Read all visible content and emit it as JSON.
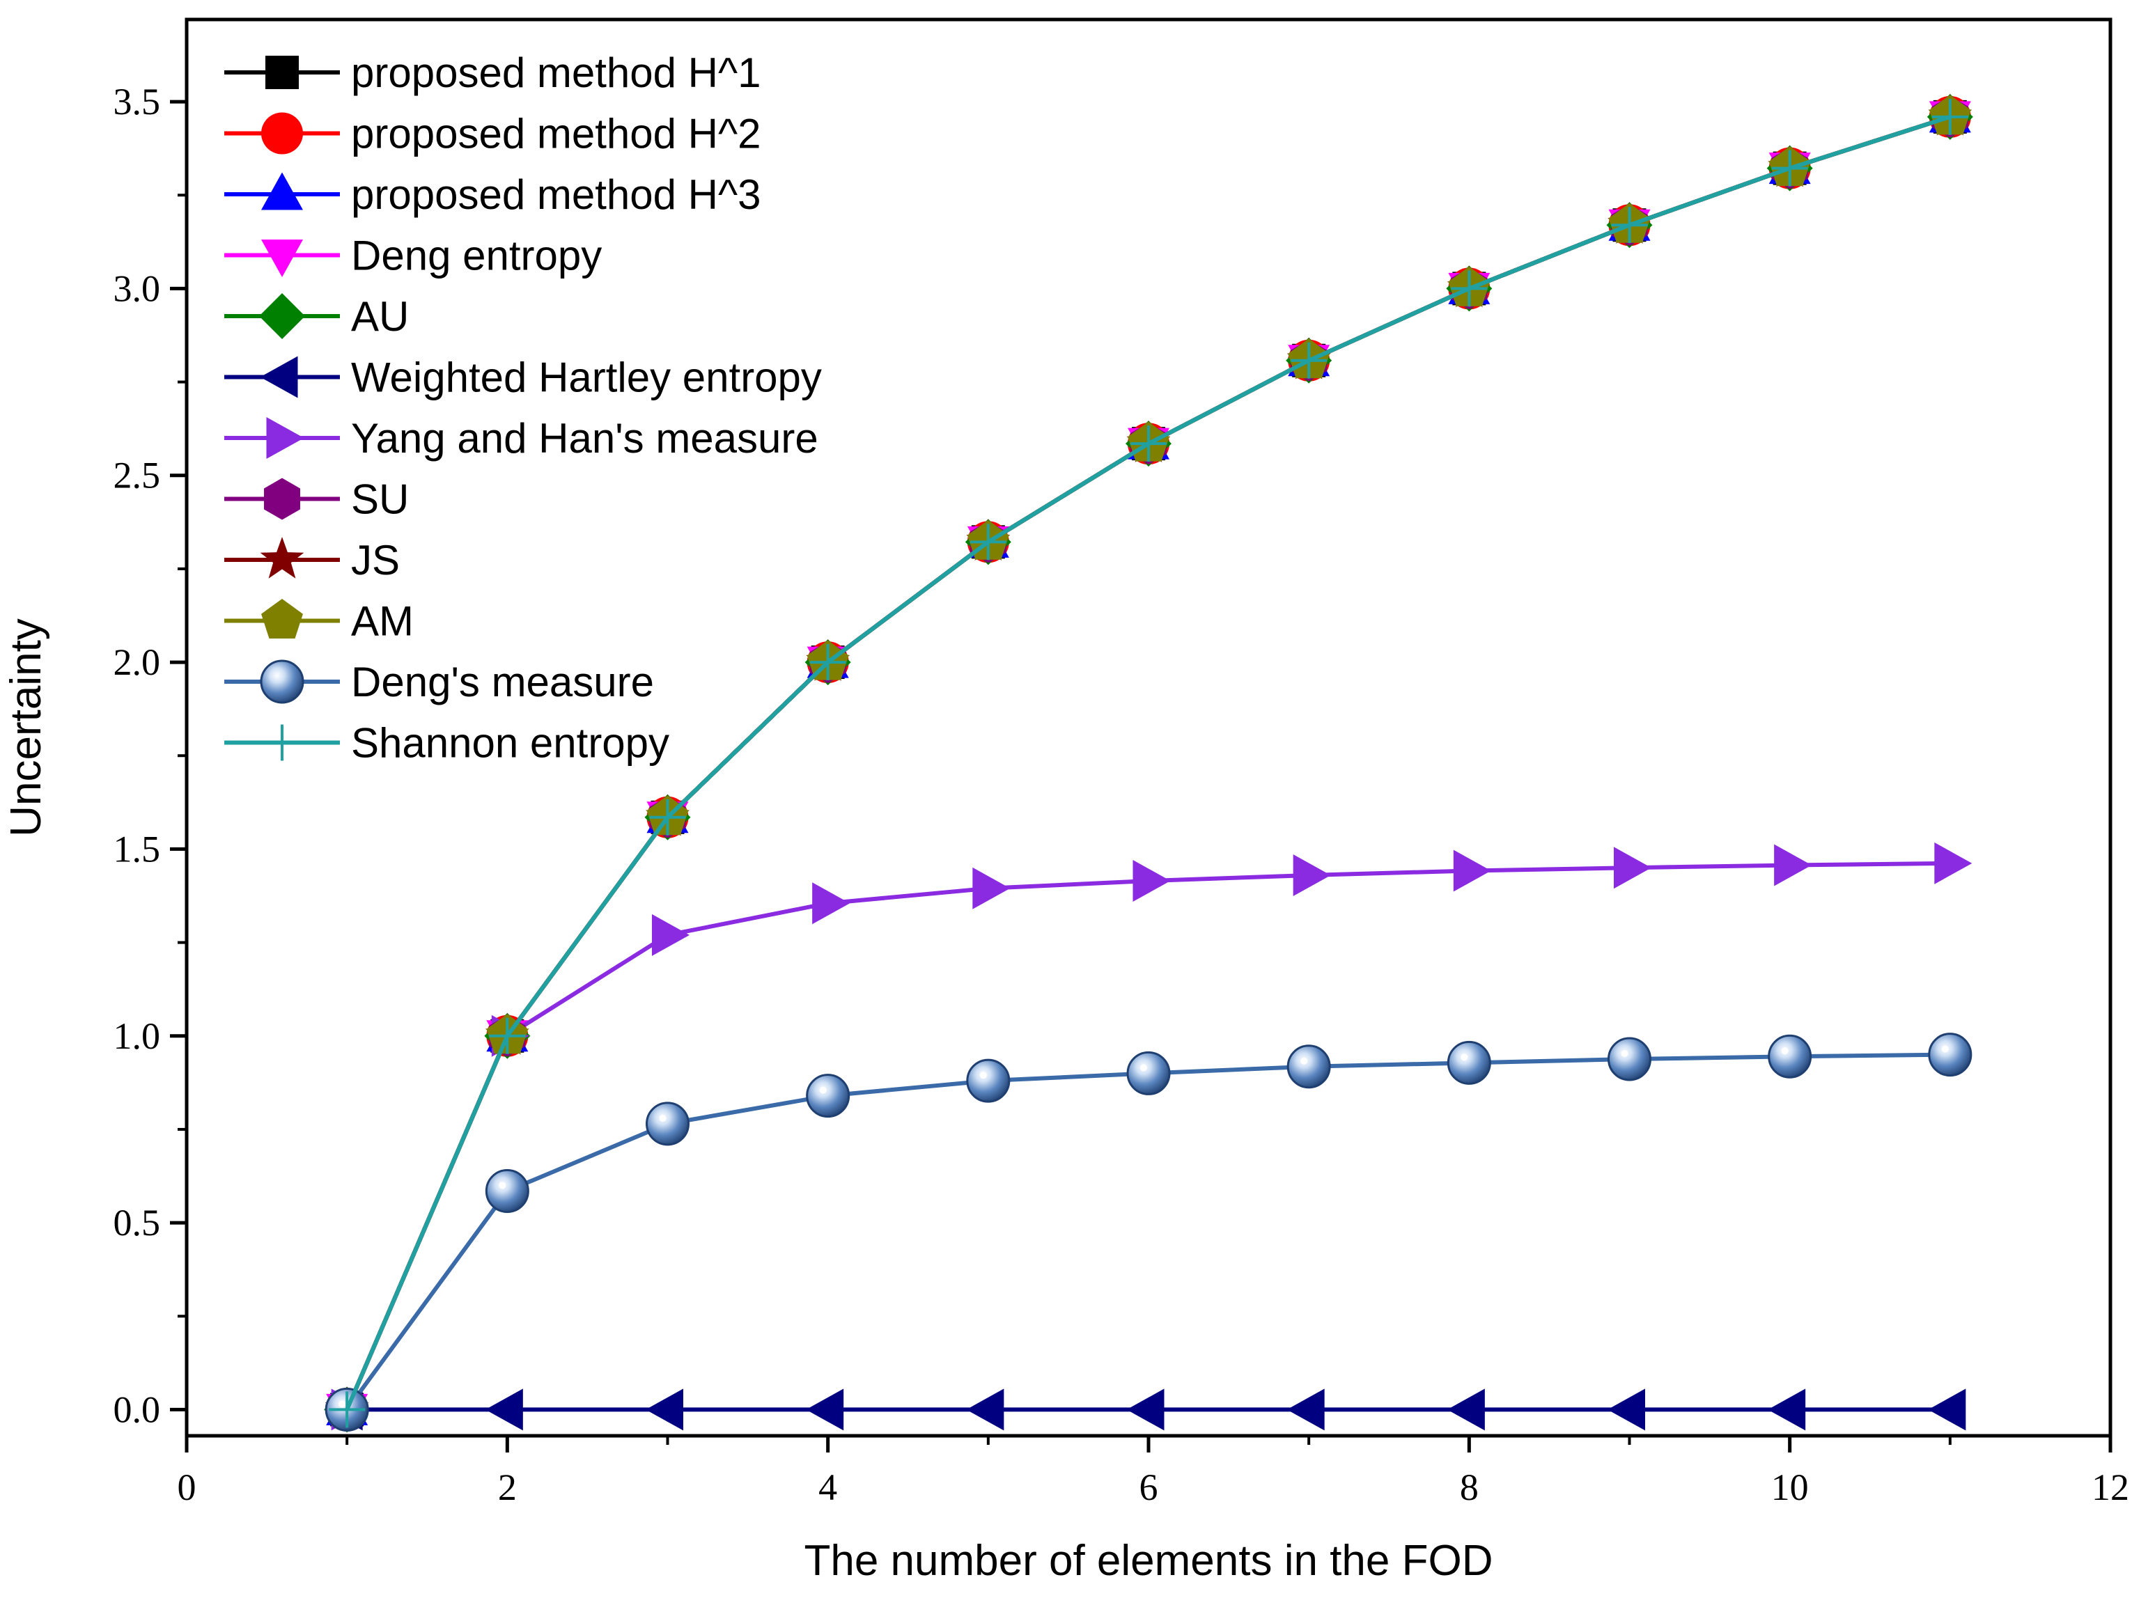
{
  "chart_data": {
    "type": "line",
    "title": "",
    "xlabel": "The number of elements in the FOD",
    "ylabel": "Uncertainty",
    "xlim": [
      0,
      12
    ],
    "ylim": [
      -0.07,
      3.72
    ],
    "xticks": [
      0,
      2,
      4,
      6,
      8,
      10,
      12
    ],
    "xtick_labels": [
      "0",
      "2",
      "4",
      "6",
      "8",
      "10",
      "12"
    ],
    "yticks": [
      0.0,
      0.5,
      1.0,
      1.5,
      2.0,
      2.5,
      3.0,
      3.5
    ],
    "ytick_labels": [
      "0.0",
      "0.5",
      "1.0",
      "1.5",
      "2.0",
      "2.5",
      "3.0",
      "3.5"
    ],
    "grid": false,
    "legend_position": "top-left",
    "x": [
      1,
      2,
      3,
      4,
      5,
      6,
      7,
      8,
      9,
      10,
      11
    ],
    "series": [
      {
        "name": "proposed method H^1",
        "color": "#000000",
        "marker": "square",
        "values": [
          0,
          1.0,
          1.585,
          2.0,
          2.3219,
          2.585,
          2.8074,
          3.0,
          3.1699,
          3.3219,
          3.4594
        ]
      },
      {
        "name": "proposed method H^2",
        "color": "#ff0000",
        "marker": "circle",
        "values": [
          0,
          1.0,
          1.585,
          2.0,
          2.3219,
          2.585,
          2.8074,
          3.0,
          3.1699,
          3.3219,
          3.4594
        ]
      },
      {
        "name": "proposed method H^3",
        "color": "#0000ff",
        "marker": "triangle-up",
        "values": [
          0,
          1.0,
          1.585,
          2.0,
          2.3219,
          2.585,
          2.8074,
          3.0,
          3.1699,
          3.3219,
          3.4594
        ]
      },
      {
        "name": "Deng entropy",
        "color": "#ff00ff",
        "marker": "triangle-down",
        "values": [
          0,
          1.0,
          1.585,
          2.0,
          2.3219,
          2.585,
          2.8074,
          3.0,
          3.1699,
          3.3219,
          3.4594
        ]
      },
      {
        "name": "AU",
        "color": "#008000",
        "marker": "diamond",
        "values": [
          0,
          1.0,
          1.585,
          2.0,
          2.3219,
          2.585,
          2.8074,
          3.0,
          3.1699,
          3.3219,
          3.4594
        ]
      },
      {
        "name": "Weighted Hartley entropy",
        "color": "#000080",
        "marker": "triangle-left",
        "values": [
          0,
          0,
          0,
          0,
          0,
          0,
          0,
          0,
          0,
          0,
          0
        ]
      },
      {
        "name": "Yang and Han's measure",
        "color": "#8a2be2",
        "marker": "triangle-right",
        "values": [
          0,
          1.0,
          1.27,
          1.355,
          1.395,
          1.415,
          1.43,
          1.442,
          1.45,
          1.457,
          1.462
        ]
      },
      {
        "name": "SU",
        "color": "#800080",
        "marker": "hexagon",
        "values": [
          0,
          1.0,
          1.585,
          2.0,
          2.3219,
          2.585,
          2.8074,
          3.0,
          3.1699,
          3.3219,
          3.4594
        ]
      },
      {
        "name": "JS",
        "color": "#800000",
        "marker": "star",
        "values": [
          0,
          1.0,
          1.585,
          2.0,
          2.3219,
          2.585,
          2.8074,
          3.0,
          3.1699,
          3.3219,
          3.4594
        ]
      },
      {
        "name": "AM",
        "color": "#808000",
        "marker": "pentagon",
        "values": [
          0,
          1.0,
          1.585,
          2.0,
          2.3219,
          2.585,
          2.8074,
          3.0,
          3.1699,
          3.3219,
          3.4594
        ]
      },
      {
        "name": "Deng's measure",
        "color": "#3a6aa8",
        "marker": "sphere",
        "values": [
          0,
          0.585,
          0.765,
          0.84,
          0.88,
          0.9,
          0.918,
          0.928,
          0.938,
          0.945,
          0.95
        ]
      },
      {
        "name": "Shannon entropy",
        "color": "#20a0a0",
        "marker": "plus",
        "values": [
          0,
          1.0,
          1.585,
          2.0,
          2.3219,
          2.585,
          2.8074,
          3.0,
          3.1699,
          3.3219,
          3.4594
        ]
      }
    ]
  }
}
